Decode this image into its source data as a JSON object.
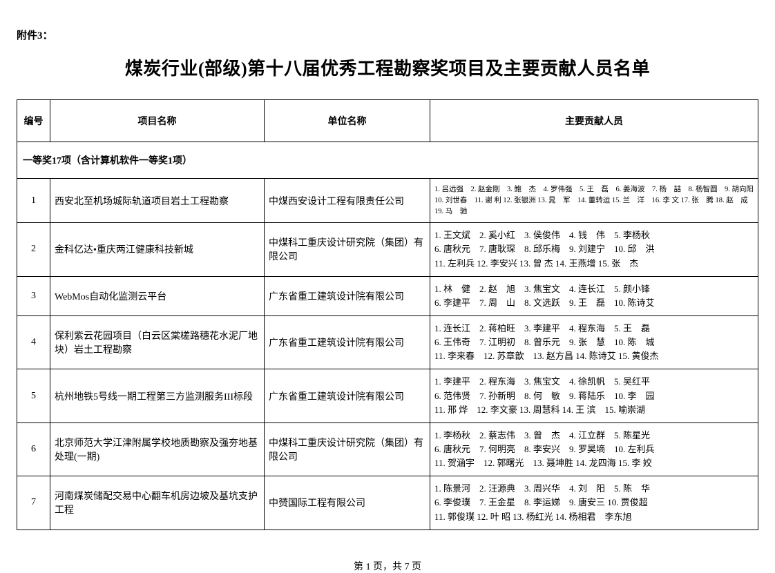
{
  "attachment_label": "附件3：",
  "title": "煤炭行业(部级)第十八届优秀工程勘察奖项目及主要贡献人员名单",
  "columns": {
    "num": "编号",
    "project": "项目名称",
    "unit": "单位名称",
    "people": "主要贡献人员"
  },
  "section_header": "一等奖17项（含计算机软件一等奖1项）",
  "rows": [
    {
      "num": "1",
      "project": "西安北至机场城际轨道项目岩土工程勘察",
      "unit": "中煤西安设计工程有限责任公司",
      "people": "1. 吕远强　2. 赵金刚　3. 鲍　杰　4. 罗伟强　5. 王　磊　6. 姜海波　7. 杨　喆　8. 杨智圆　9. 胡向阳 10. 刘世春　11. 谢 利 12. 张银洲 13. 晁　军　14. 董转运 15. 兰　洋　16. 李 文 17. 张　腾 18. 赵　成 19. 马　驰",
      "small": true
    },
    {
      "num": "2",
      "project": "金科亿达•重庆两江健康科技新城",
      "unit": "中煤科工重庆设计研究院（集团）有限公司",
      "people": "1. 王文斌　2. 奚小红　3. 侯俊伟　4. 钱　伟　5. 李杨秋\n6. 唐秋元　7. 唐耿琛　8. 邱乐梅　9. 刘建宁　10. 邱　洪\n11. 左利兵 12. 李安兴 13. 曾 杰 14. 王燕增 15. 张　杰"
    },
    {
      "num": "3",
      "project": "WebMos自动化监测云平台",
      "unit": "广东省重工建筑设计院有限公司",
      "people": "1. 林　健　2. 赵　旭　3. 焦宝文　4. 连长江　5. 颜小锋\n6. 李建平　7. 周　山　8. 文选跃　9. 王　磊　10. 陈诗艾"
    },
    {
      "num": "4",
      "project": "保利紫云花园项目（白云区棠槎路穗花水泥厂地块）岩土工程勘察",
      "unit": "广东省重工建筑设计院有限公司",
      "people": "1. 连长江　2. 蒋柏旺　3. 李建平　4. 程东海　5. 王　磊\n6. 王伟奇　7. 江明初　8. 曾乐元　9. 张　慧　10. 陈　城\n11. 李来春　12. 苏章歆　13. 赵方昌 14. 陈诗艾 15. 黄俊杰"
    },
    {
      "num": "5",
      "project": "杭州地铁5号线一期工程第三方监测服务III标段",
      "unit": "广东省重工建筑设计院有限公司",
      "people": "1. 李建平　2. 程东海　3. 焦宝文　4. 徐凯帆　5. 吴红平\n6. 范伟贤　7. 孙新明　8. 何　敏　9. 蒋陆乐　10. 李　园\n11. 邢 烨　12. 李文豪 13. 周慧科 14. 王 滨　15. 喻崇湖"
    },
    {
      "num": "6",
      "project": "北京师范大学江津附属学校地质勘察及强夯地基处理(一期)",
      "unit": "中煤科工重庆设计研究院（集团）有限公司",
      "people": "1. 李杨秋　2. 蔡志伟　3. 曾　杰　4. 江立群　5. 陈星光\n6. 唐秋元　7. 何明亮　8. 李安兴　9. 罗昊墒　10. 左利兵\n11. 贺涵宇　12. 郭曙光　13. 聂坤胜 14. 龙四海 15. 李 姣"
    },
    {
      "num": "7",
      "project": "河南煤炭储配交易中心翻车机房边坡及基坑支护工程",
      "unit": "中赟国际工程有限公司",
      "people": "1. 陈景河　2. 汪源典　3. 周兴华　4. 刘　阳　5. 陈　华\n6. 李俊璞　7. 王金星　8. 李运娣　9. 唐安三 10. 贾俊超\n11. 郭俊璞 12. 叶 昭 13. 杨红光 14. 杨相君　李东旭"
    }
  ],
  "pager": {
    "current": "1",
    "total": "7",
    "prefix": "第 ",
    "middle": " 页，共 ",
    "suffix": " 页"
  }
}
